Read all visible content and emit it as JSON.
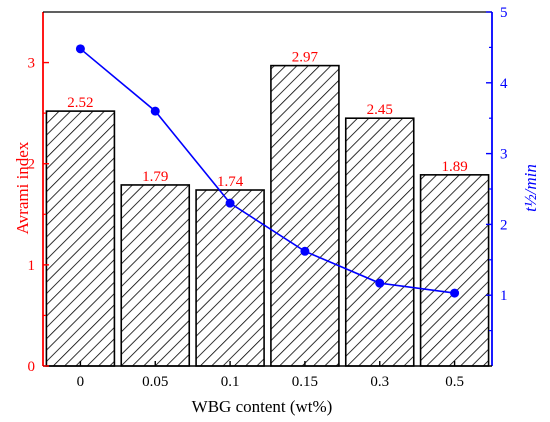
{
  "chart_data": {
    "type": "bar",
    "categories": [
      "0",
      "0.05",
      "0.1",
      "0.15",
      "0.3",
      "0.5"
    ],
    "series": [
      {
        "type": "bar",
        "axis": "left",
        "values": [
          2.52,
          1.79,
          1.74,
          2.97,
          2.45,
          1.89
        ],
        "data_labels": [
          "2.52",
          "1.79",
          "1.74",
          "2.97",
          "2.45",
          "1.89"
        ],
        "pattern": "diagonal-hatch",
        "color": "#000000",
        "label_color": "#ff0000"
      },
      {
        "type": "line",
        "axis": "right",
        "values": [
          4.48,
          3.6,
          2.3,
          1.62,
          1.17,
          1.03
        ],
        "marker": "circle",
        "color": "#0000ff"
      }
    ],
    "xlabel": "WBG content (wt%)",
    "ylabel_left": "Avrami index",
    "ylabel_right": "t½/min",
    "ylim_left": [
      0,
      3.5
    ],
    "ylim_right": [
      0,
      5
    ],
    "yticks_left": [
      "0",
      "1",
      "2",
      "3"
    ],
    "yticks_right": [
      "1",
      "2",
      "3",
      "4",
      "5"
    ],
    "left_axis_color": "#ff0000",
    "right_axis_color": "#0000ff",
    "grid": false,
    "legend": "none"
  }
}
